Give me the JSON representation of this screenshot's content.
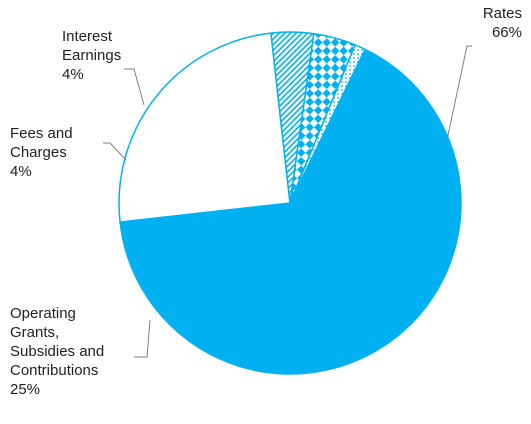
{
  "chart_data": {
    "type": "pie",
    "title": "",
    "slices": [
      {
        "label_lines": [
          "Rates"
        ],
        "value": 66,
        "pct_text": "66%",
        "fill": "solid",
        "color": "#00b0f0"
      },
      {
        "label_lines": [
          "Operating",
          "Grants,",
          "Subsidies and",
          "Contributions"
        ],
        "value": 25,
        "pct_text": "25%",
        "fill": "white",
        "color": "#00b0f0"
      },
      {
        "label_lines": [
          "Fees and",
          "Charges"
        ],
        "value": 4,
        "pct_text": "4%",
        "fill": "hatch",
        "color": "#00b0f0"
      },
      {
        "label_lines": [
          "Interest",
          "Earnings"
        ],
        "value": 4,
        "pct_text": "4%",
        "fill": "checker",
        "color": "#00b0f0"
      },
      {
        "label_lines": [],
        "value": 1,
        "pct_text": "",
        "fill": "dots",
        "color": "#00b0f0"
      }
    ]
  }
}
